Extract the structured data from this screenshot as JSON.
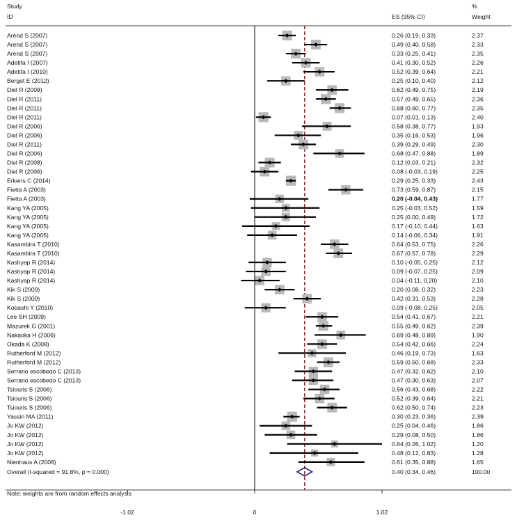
{
  "chart_data": {
    "type": "forest",
    "header": {
      "study_line1": "Study",
      "study_line2": "ID",
      "es_label": "ES (95% CI)",
      "weight_line1": "%",
      "weight_line2": "Weight"
    },
    "xticks": [
      -1.02,
      0,
      1.02
    ],
    "xtick_labels": [
      "-1.02",
      "0",
      "1.02"
    ],
    "x_range": [
      -1.02,
      1.02
    ],
    "dashed_reference": 0.4,
    "footnote": "Note: weights are from random effects analysis",
    "studies": [
      {
        "label": "Arend S (2007)",
        "es": 0.26,
        "lo": 0.19,
        "hi": 0.33,
        "ci": "0.26 (0.19, 0.33)",
        "weight": "2.37",
        "w": 2.37
      },
      {
        "label": "Arend S (2007)",
        "es": 0.49,
        "lo": 0.4,
        "hi": 0.58,
        "ci": "0.49 (0.40, 0.58)",
        "weight": "2.33",
        "w": 2.33
      },
      {
        "label": "Arend S (2007)",
        "es": 0.33,
        "lo": 0.25,
        "hi": 0.41,
        "ci": "0.33 (0.25, 0.41)",
        "weight": "2.35",
        "w": 2.35
      },
      {
        "label": "Adetifa I (2007)",
        "es": 0.41,
        "lo": 0.3,
        "hi": 0.52,
        "ci": "0.41 (0.30, 0.52)",
        "weight": "2.26",
        "w": 2.26
      },
      {
        "label": "Adetifa I (2010)",
        "es": 0.52,
        "lo": 0.39,
        "hi": 0.64,
        "ci": "0.52 (0.39, 0.64)",
        "weight": "2.21",
        "w": 2.21
      },
      {
        "label": "Bergot E (2012)",
        "es": 0.25,
        "lo": 0.1,
        "hi": 0.4,
        "ci": "0.25 (0.10, 0.40)",
        "weight": "2.12",
        "w": 2.12
      },
      {
        "label": "Diel R (2008)",
        "es": 0.62,
        "lo": 0.49,
        "hi": 0.75,
        "ci": "0.62 (0.49, 0.75)",
        "weight": "2.19",
        "w": 2.19
      },
      {
        "label": "Diel R (2011)",
        "es": 0.57,
        "lo": 0.49,
        "hi": 0.65,
        "ci": "0.57 (0.49, 0.65)",
        "weight": "2.36",
        "w": 2.36
      },
      {
        "label": "Diel R (2011)",
        "es": 0.68,
        "lo": 0.6,
        "hi": 0.77,
        "ci": "0.68 (0.60, 0.77)",
        "weight": "2.35",
        "w": 2.35
      },
      {
        "label": "Diel R (2011)",
        "es": 0.07,
        "lo": 0.01,
        "hi": 0.13,
        "ci": "0.07 (0.01, 0.13)",
        "weight": "2.40",
        "w": 2.4
      },
      {
        "label": "Diel R (2006)",
        "es": 0.58,
        "lo": 0.38,
        "hi": 0.77,
        "ci": "0.58 (0.38, 0.77)",
        "weight": "1.93",
        "w": 1.93
      },
      {
        "label": "Diel R (2006)",
        "es": 0.35,
        "lo": 0.16,
        "hi": 0.53,
        "ci": "0.35 (0.16, 0.53)",
        "weight": "1.96",
        "w": 1.96
      },
      {
        "label": "Diel R (2011)",
        "es": 0.39,
        "lo": 0.29,
        "hi": 0.49,
        "ci": "0.39 (0.29, 0.49)",
        "weight": "2.30",
        "w": 2.3
      },
      {
        "label": "Diel R (2006)",
        "es": 0.68,
        "lo": 0.47,
        "hi": 0.88,
        "ci": "0.68 (0.47, 0.88)",
        "weight": "1.89",
        "w": 1.89
      },
      {
        "label": "Diel R (2008)",
        "es": 0.12,
        "lo": 0.03,
        "hi": 0.21,
        "ci": "0.12 (0.03, 0.21)",
        "weight": "2.32",
        "w": 2.32
      },
      {
        "label": "Diel R (2006)",
        "es": 0.08,
        "lo": -0.03,
        "hi": 0.19,
        "ci": "0.08 (-0.03, 0.19)",
        "weight": "2.25",
        "w": 2.25
      },
      {
        "label": "Erkens C (2014)",
        "es": 0.29,
        "lo": 0.25,
        "hi": 0.33,
        "ci": "0.29 (0.25, 0.33)",
        "weight": "2.43",
        "w": 2.43
      },
      {
        "label": "Fietta A (2003)",
        "es": 0.73,
        "lo": 0.59,
        "hi": 0.87,
        "ci": "0.73 (0.59, 0.87)",
        "weight": "2.15",
        "w": 2.15
      },
      {
        "label": "Fietta A (2003)",
        "es": 0.2,
        "lo": -0.04,
        "hi": 0.43,
        "ci": "0.20 (-0.04, 0.43)",
        "weight": "1.77",
        "w": 1.77,
        "bold": true
      },
      {
        "label": "Kang YA (2005)",
        "es": 0.25,
        "lo": -0.03,
        "hi": 0.52,
        "ci": "0.25 (-0.03, 0.52)",
        "weight": "1.59",
        "w": 1.59
      },
      {
        "label": "Kang YA (2005)",
        "es": 0.25,
        "lo": 0.0,
        "hi": 0.49,
        "ci": "0.25 (0.00, 0.49)",
        "weight": "1.72",
        "w": 1.72
      },
      {
        "label": "Kang YA (2005)",
        "es": 0.17,
        "lo": -0.1,
        "hi": 0.44,
        "ci": "0.17 (-0.10, 0.44)",
        "weight": "1.63",
        "w": 1.63
      },
      {
        "label": "Kang YA (2005)",
        "es": 0.14,
        "lo": -0.06,
        "hi": 0.34,
        "ci": "0.14 (-0.06, 0.34)",
        "weight": "1.91",
        "w": 1.91
      },
      {
        "label": "Kasambira T (2010)",
        "es": 0.64,
        "lo": 0.53,
        "hi": 0.75,
        "ci": "0.64 (0.53, 0.75)",
        "weight": "2.26",
        "w": 2.26
      },
      {
        "label": "Kasambira T (2010)",
        "es": 0.67,
        "lo": 0.57,
        "hi": 0.78,
        "ci": "0.67 (0.57, 0.78)",
        "weight": "2.29",
        "w": 2.29
      },
      {
        "label": "Kashyap R (2014)",
        "es": 0.1,
        "lo": -0.05,
        "hi": 0.25,
        "ci": "0.10 (-0.05, 0.25)",
        "weight": "2.12",
        "w": 2.12
      },
      {
        "label": "Kashyap R (2014)",
        "es": 0.09,
        "lo": -0.07,
        "hi": 0.25,
        "ci": "0.09 (-0.07, 0.25)",
        "weight": "2.09",
        "w": 2.09
      },
      {
        "label": "Kashyap R (2014)",
        "es": 0.04,
        "lo": -0.11,
        "hi": 0.2,
        "ci": "0.04 (-0.11, 0.20)",
        "weight": "2.10",
        "w": 2.1
      },
      {
        "label": "Kik S (2009)",
        "es": 0.2,
        "lo": 0.08,
        "hi": 0.32,
        "ci": "0.20 (0.08, 0.32)",
        "weight": "2.23",
        "w": 2.23
      },
      {
        "label": "Kik S (2009)",
        "es": 0.42,
        "lo": 0.31,
        "hi": 0.53,
        "ci": "0.42 (0.31, 0.53)",
        "weight": "2.28",
        "w": 2.28
      },
      {
        "label": "Kobashi Y (2010)",
        "es": 0.09,
        "lo": -0.08,
        "hi": 0.25,
        "ci": "0.09 (-0.08, 0.25)",
        "weight": "2.05",
        "w": 2.05
      },
      {
        "label": "Lee SH (2009)",
        "es": 0.54,
        "lo": 0.41,
        "hi": 0.67,
        "ci": "0.54 (0.41, 0.67)",
        "weight": "2.21",
        "w": 2.21
      },
      {
        "label": "Mazurek G (2001)",
        "es": 0.55,
        "lo": 0.49,
        "hi": 0.62,
        "ci": "0.55 (0.49, 0.62)",
        "weight": "2.39",
        "w": 2.39
      },
      {
        "label": "Nakaoka H (2006)",
        "es": 0.69,
        "lo": 0.48,
        "hi": 0.89,
        "ci": "0.69 (0.48, 0.89)",
        "weight": "1.90",
        "w": 1.9
      },
      {
        "label": "Okada K (2008)",
        "es": 0.54,
        "lo": 0.42,
        "hi": 0.66,
        "ci": "0.54 (0.42, 0.66)",
        "weight": "2.24",
        "w": 2.24
      },
      {
        "label": "Rutherford M (2012)",
        "es": 0.46,
        "lo": 0.19,
        "hi": 0.73,
        "ci": "0.46 (0.19, 0.73)",
        "weight": "1.63",
        "w": 1.63
      },
      {
        "label": "Rutherford M (2012)",
        "es": 0.59,
        "lo": 0.5,
        "hi": 0.68,
        "ci": "0.59 (0.50, 0.68)",
        "weight": "2.33",
        "w": 2.33
      },
      {
        "label": "Serrano escobedo C (2013)",
        "es": 0.47,
        "lo": 0.32,
        "hi": 0.62,
        "ci": "0.47 (0.32, 0.62)",
        "weight": "2.10",
        "w": 2.1
      },
      {
        "label": "Serrano escobedo C (2013)",
        "es": 0.47,
        "lo": 0.3,
        "hi": 0.63,
        "ci": "0.47 (0.30, 0.63)",
        "weight": "2.07",
        "w": 2.07
      },
      {
        "label": "Tsiouris S (2006)",
        "es": 0.56,
        "lo": 0.43,
        "hi": 0.68,
        "ci": "0.56 (0.43, 0.68)",
        "weight": "2.22",
        "w": 2.22
      },
      {
        "label": "Tsiouris S (2006)",
        "es": 0.52,
        "lo": 0.39,
        "hi": 0.64,
        "ci": "0.52 (0.39, 0.64)",
        "weight": "2.21",
        "w": 2.21
      },
      {
        "label": "Tsiouris S (2006)",
        "es": 0.62,
        "lo": 0.5,
        "hi": 0.74,
        "ci": "0.62 (0.50, 0.74)",
        "weight": "2.23",
        "w": 2.23
      },
      {
        "label": "Yassin MA (2011)",
        "es": 0.3,
        "lo": 0.23,
        "hi": 0.36,
        "ci": "0.30 (0.23, 0.36)",
        "weight": "2.39",
        "w": 2.39
      },
      {
        "label": "Jo KW (2012)",
        "es": 0.25,
        "lo": 0.04,
        "hi": 0.46,
        "ci": "0.25 (0.04, 0.46)",
        "weight": "1.86",
        "w": 1.86
      },
      {
        "label": "Jo KW (2012)",
        "es": 0.29,
        "lo": 0.08,
        "hi": 0.5,
        "ci": "0.29 (0.08, 0.50)",
        "weight": "1.86",
        "w": 1.86
      },
      {
        "label": "Jo KW (2012)",
        "es": 0.64,
        "lo": 0.26,
        "hi": 1.02,
        "ci": "0.64 (0.26, 1.02)",
        "weight": "1.20",
        "w": 1.2
      },
      {
        "label": "Jo KW (2012)",
        "es": 0.48,
        "lo": 0.12,
        "hi": 0.83,
        "ci": "0.48 (0.12, 0.83)",
        "weight": "1.28",
        "w": 1.28
      },
      {
        "label": "Nienhaus A (2008)",
        "es": 0.61,
        "lo": 0.35,
        "hi": 0.88,
        "ci": "0.61 (0.35, 0.88)",
        "weight": "1.65",
        "w": 1.65
      }
    ],
    "overall": {
      "label": "Overall  (I-squared = 91.8%, p = 0.000)",
      "es": 0.4,
      "lo": 0.34,
      "hi": 0.46,
      "ci": "0.40 (0.34, 0.46)",
      "weight": "100.00"
    },
    "colors": {
      "square": "#b9b9b9",
      "line": "#000000",
      "reference": "#8b1a1a",
      "diamond": "#1a1a7a"
    }
  }
}
